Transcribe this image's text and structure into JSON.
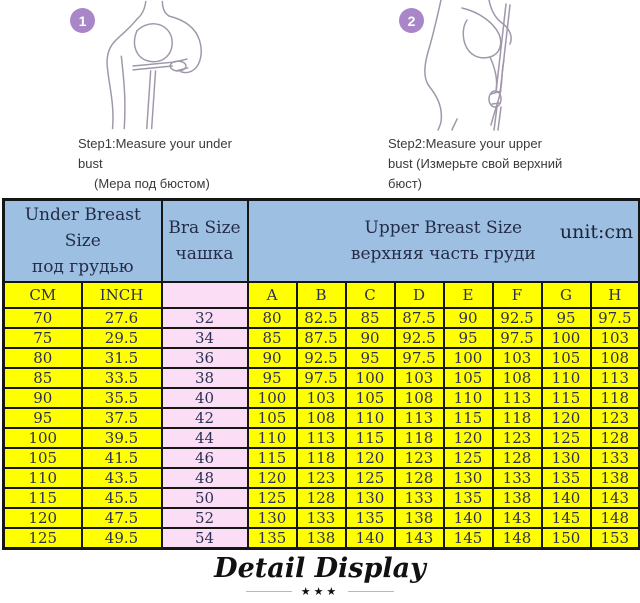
{
  "steps": [
    {
      "badge": "1",
      "caption_line1": "Step1:Measure your under",
      "caption_line2": "bust",
      "caption_line3": "(Мера под бюстом)"
    },
    {
      "badge": "2",
      "caption_line1": "Step2:Measure your upper",
      "caption_line2": "bust (Измерьте свой верхний",
      "caption_line3": "бюст)"
    }
  ],
  "table": {
    "header": {
      "under_breast_title": "Under Breast Size",
      "under_breast_sub": "под грудью",
      "bra_size_title": "Bra Size",
      "bra_size_sub": "чашка",
      "upper_breast_title": "Upper Breast Size",
      "upper_breast_sub": "верхняя часть груди",
      "unit_label": "unit:cm"
    },
    "sub_headers": [
      "CM",
      "INCH",
      "",
      "A",
      "B",
      "C",
      "D",
      "E",
      "F",
      "G",
      "H"
    ],
    "rows": [
      {
        "cm": "70",
        "inch": "27.6",
        "bra": "32",
        "cups": [
          "80",
          "82.5",
          "85",
          "87.5",
          "90",
          "92.5",
          "95",
          "97.5"
        ]
      },
      {
        "cm": "75",
        "inch": "29.5",
        "bra": "34",
        "cups": [
          "85",
          "87.5",
          "90",
          "92.5",
          "95",
          "97.5",
          "100",
          "103"
        ]
      },
      {
        "cm": "80",
        "inch": "31.5",
        "bra": "36",
        "cups": [
          "90",
          "92.5",
          "95",
          "97.5",
          "100",
          "103",
          "105",
          "108"
        ]
      },
      {
        "cm": "85",
        "inch": "33.5",
        "bra": "38",
        "cups": [
          "95",
          "97.5",
          "100",
          "103",
          "105",
          "108",
          "110",
          "113"
        ]
      },
      {
        "cm": "90",
        "inch": "35.5",
        "bra": "40",
        "cups": [
          "100",
          "103",
          "105",
          "108",
          "110",
          "113",
          "115",
          "118"
        ]
      },
      {
        "cm": "95",
        "inch": "37.5",
        "bra": "42",
        "cups": [
          "105",
          "108",
          "110",
          "113",
          "115",
          "118",
          "120",
          "123"
        ]
      },
      {
        "cm": "100",
        "inch": "39.5",
        "bra": "44",
        "cups": [
          "110",
          "113",
          "115",
          "118",
          "120",
          "123",
          "125",
          "128"
        ]
      },
      {
        "cm": "105",
        "inch": "41.5",
        "bra": "46",
        "cups": [
          "115",
          "118",
          "120",
          "123",
          "125",
          "128",
          "130",
          "133"
        ]
      },
      {
        "cm": "110",
        "inch": "43.5",
        "bra": "48",
        "cups": [
          "120",
          "123",
          "125",
          "128",
          "130",
          "133",
          "135",
          "138"
        ]
      },
      {
        "cm": "115",
        "inch": "45.5",
        "bra": "50",
        "cups": [
          "125",
          "128",
          "130",
          "133",
          "135",
          "138",
          "140",
          "143"
        ]
      },
      {
        "cm": "120",
        "inch": "47.5",
        "bra": "52",
        "cups": [
          "130",
          "133",
          "135",
          "138",
          "140",
          "143",
          "145",
          "148"
        ]
      },
      {
        "cm": "125",
        "inch": "49.5",
        "bra": "54",
        "cups": [
          "135",
          "138",
          "140",
          "143",
          "145",
          "148",
          "150",
          "153"
        ]
      }
    ]
  },
  "footer": {
    "title": "Detail Display",
    "stars": "★★★"
  },
  "colors": {
    "header_blue": "#9cbfe2",
    "cell_yellow": "#ffff00",
    "cell_pink": "#fbdef6",
    "badge_purple": "#a886c8",
    "table_text": "#2b2f52"
  }
}
